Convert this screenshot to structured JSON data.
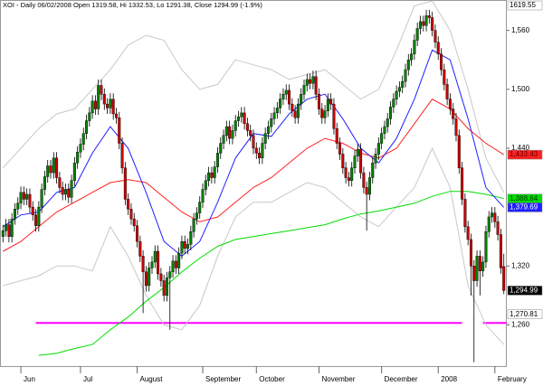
{
  "chart_data": {
    "type": "candlestick",
    "title": "XOI - Daily 06/02/2008 Open 1319.58, Hi 1332.53, Lo 1291.38, Close 1294.99 (-1.9%)",
    "up_color": "#008000",
    "down_color": "#cc0000",
    "xlim": [
      -1,
      169
    ],
    "ylim": [
      1218,
      1591
    ],
    "yticks": [
      {
        "value": 1260,
        "label": "1,260"
      },
      {
        "value": 1320,
        "label": "1,320"
      },
      {
        "value": 1440,
        "label": "1,440"
      },
      {
        "value": 1500,
        "label": "1,500"
      },
      {
        "value": 1560,
        "label": "1,560"
      }
    ],
    "xticks": [
      {
        "value": 6,
        "label": "Jun"
      },
      {
        "value": 26,
        "label": "Jul"
      },
      {
        "value": 45,
        "label": "August"
      },
      {
        "value": 67,
        "label": "September"
      },
      {
        "value": 85,
        "label": "October"
      },
      {
        "value": 106,
        "label": "November"
      },
      {
        "value": 127,
        "label": "December"
      },
      {
        "value": 146,
        "label": "2008"
      },
      {
        "value": 165,
        "label": "February"
      }
    ],
    "open": [
      1350,
      1356,
      1362,
      1350,
      1368,
      1378,
      1384,
      1395,
      1388,
      1393,
      1380,
      1372,
      1361,
      1380,
      1398,
      1411,
      1422,
      1415,
      1430,
      1410,
      1400,
      1393,
      1398,
      1390,
      1407,
      1425,
      1436,
      1444,
      1455,
      1468,
      1476,
      1488,
      1480,
      1504,
      1495,
      1485,
      1481,
      1490,
      1475,
      1471,
      1445,
      1420,
      1388,
      1378,
      1368,
      1361,
      1345,
      1330,
      1314,
      1300,
      1318,
      1324,
      1335,
      1312,
      1305,
      1290,
      1308,
      1314,
      1325,
      1318,
      1333,
      1345,
      1338,
      1342,
      1355,
      1368,
      1374,
      1385,
      1398,
      1407,
      1415,
      1410,
      1421,
      1435,
      1445,
      1453,
      1462,
      1450,
      1458,
      1468,
      1472,
      1476,
      1465,
      1458,
      1453,
      1440,
      1435,
      1430,
      1445,
      1455,
      1462,
      1470,
      1476,
      1481,
      1490,
      1495,
      1499,
      1485,
      1478,
      1471,
      1485,
      1495,
      1504,
      1510,
      1506,
      1513,
      1495,
      1480,
      1471,
      1478,
      1490,
      1485,
      1460,
      1445,
      1434,
      1420,
      1410,
      1407,
      1420,
      1432,
      1439,
      1415,
      1400,
      1393,
      1410,
      1425,
      1434,
      1445,
      1455,
      1462,
      1470,
      1482,
      1490,
      1498,
      1502,
      1508,
      1520,
      1530,
      1536,
      1550,
      1562,
      1569,
      1565,
      1575,
      1573,
      1560,
      1548,
      1536,
      1520,
      1505,
      1490,
      1480,
      1470,
      1453,
      1420,
      1388,
      1360,
      1347,
      1320,
      1305,
      1330,
      1315,
      1324,
      1355,
      1370,
      1374,
      1365,
      1352,
      1319.58
    ],
    "high": [
      1362,
      1368,
      1368,
      1374,
      1384,
      1390,
      1401,
      1401,
      1399,
      1399,
      1386,
      1378,
      1386,
      1404,
      1417,
      1428,
      1428,
      1436,
      1436,
      1416,
      1406,
      1404,
      1404,
      1413,
      1431,
      1442,
      1450,
      1461,
      1474,
      1482,
      1494,
      1494,
      1510,
      1510,
      1501,
      1491,
      1496,
      1496,
      1481,
      1477,
      1451,
      1426,
      1394,
      1384,
      1374,
      1367,
      1351,
      1336,
      1320,
      1324,
      1330,
      1341,
      1341,
      1318,
      1311,
      1314,
      1320,
      1331,
      1331,
      1339,
      1351,
      1351,
      1348,
      1361,
      1374,
      1380,
      1391,
      1404,
      1413,
      1421,
      1421,
      1427,
      1441,
      1451,
      1459,
      1468,
      1468,
      1464,
      1474,
      1478,
      1482,
      1482,
      1471,
      1464,
      1459,
      1446,
      1441,
      1451,
      1461,
      1468,
      1476,
      1482,
      1487,
      1496,
      1501,
      1505,
      1505,
      1491,
      1484,
      1491,
      1501,
      1510,
      1516,
      1516,
      1519,
      1519,
      1501,
      1486,
      1484,
      1496,
      1496,
      1491,
      1466,
      1451,
      1440,
      1426,
      1416,
      1426,
      1438,
      1445,
      1445,
      1421,
      1406,
      1416,
      1431,
      1440,
      1451,
      1461,
      1468,
      1476,
      1488,
      1496,
      1504,
      1508,
      1514,
      1526,
      1536,
      1542,
      1556,
      1568,
      1575,
      1575,
      1581,
      1581,
      1579,
      1566,
      1554,
      1542,
      1526,
      1511,
      1496,
      1486,
      1476,
      1459,
      1426,
      1394,
      1366,
      1353,
      1326,
      1336,
      1336,
      1330,
      1361,
      1376,
      1380,
      1380,
      1371,
      1358,
      1332.53
    ],
    "low": [
      1344,
      1350,
      1344,
      1344,
      1362,
      1372,
      1378,
      1382,
      1382,
      1374,
      1366,
      1355,
      1355,
      1374,
      1392,
      1405,
      1409,
      1409,
      1404,
      1394,
      1387,
      1387,
      1384,
      1384,
      1401,
      1419,
      1430,
      1438,
      1449,
      1462,
      1470,
      1474,
      1474,
      1489,
      1479,
      1475,
      1475,
      1469,
      1465,
      1439,
      1414,
      1382,
      1372,
      1362,
      1355,
      1339,
      1324,
      1272,
      1294,
      1294,
      1312,
      1318,
      1306,
      1299,
      1284,
      1284,
      1255,
      1308,
      1312,
      1312,
      1327,
      1332,
      1332,
      1336,
      1349,
      1362,
      1368,
      1379,
      1392,
      1401,
      1404,
      1404,
      1415,
      1429,
      1439,
      1447,
      1444,
      1444,
      1452,
      1462,
      1466,
      1459,
      1452,
      1447,
      1434,
      1429,
      1424,
      1424,
      1439,
      1449,
      1456,
      1464,
      1470,
      1475,
      1484,
      1489,
      1479,
      1472,
      1465,
      1465,
      1479,
      1489,
      1498,
      1500,
      1500,
      1489,
      1474,
      1465,
      1465,
      1472,
      1479,
      1454,
      1439,
      1428,
      1414,
      1404,
      1401,
      1401,
      1414,
      1426,
      1409,
      1394,
      1356,
      1387,
      1404,
      1419,
      1428,
      1439,
      1449,
      1456,
      1464,
      1476,
      1484,
      1492,
      1496,
      1502,
      1514,
      1524,
      1530,
      1544,
      1556,
      1559,
      1559,
      1567,
      1554,
      1542,
      1530,
      1514,
      1499,
      1484,
      1474,
      1464,
      1447,
      1414,
      1382,
      1354,
      1341,
      1290,
      1222,
      1299,
      1290,
      1309,
      1318,
      1349,
      1364,
      1359,
      1346,
      1312,
      1291.38
    ],
    "close": [
      1356,
      1362,
      1350,
      1368,
      1378,
      1384,
      1395,
      1388,
      1393,
      1380,
      1372,
      1361,
      1380,
      1398,
      1411,
      1422,
      1415,
      1430,
      1410,
      1400,
      1393,
      1398,
      1390,
      1407,
      1425,
      1436,
      1444,
      1455,
      1468,
      1476,
      1488,
      1480,
      1504,
      1495,
      1485,
      1481,
      1490,
      1475,
      1471,
      1445,
      1420,
      1388,
      1378,
      1368,
      1361,
      1345,
      1330,
      1314,
      1300,
      1318,
      1324,
      1335,
      1312,
      1305,
      1290,
      1308,
      1314,
      1325,
      1318,
      1333,
      1345,
      1338,
      1342,
      1355,
      1368,
      1374,
      1385,
      1398,
      1407,
      1415,
      1410,
      1421,
      1435,
      1445,
      1453,
      1462,
      1450,
      1458,
      1468,
      1472,
      1476,
      1465,
      1458,
      1453,
      1440,
      1435,
      1430,
      1445,
      1455,
      1462,
      1470,
      1476,
      1481,
      1490,
      1495,
      1499,
      1485,
      1478,
      1471,
      1485,
      1495,
      1504,
      1510,
      1506,
      1513,
      1495,
      1480,
      1471,
      1478,
      1490,
      1485,
      1460,
      1445,
      1434,
      1420,
      1410,
      1407,
      1420,
      1432,
      1439,
      1415,
      1400,
      1393,
      1410,
      1425,
      1434,
      1445,
      1455,
      1462,
      1470,
      1482,
      1490,
      1498,
      1502,
      1508,
      1520,
      1530,
      1536,
      1550,
      1562,
      1569,
      1565,
      1575,
      1573,
      1560,
      1548,
      1536,
      1520,
      1505,
      1490,
      1480,
      1470,
      1453,
      1420,
      1388,
      1360,
      1347,
      1320,
      1305,
      1330,
      1315,
      1324,
      1355,
      1370,
      1374,
      1365,
      1352,
      1318,
      1294.99
    ],
    "overlay_x": [
      0,
      6,
      12,
      18,
      24,
      30,
      36,
      42,
      48,
      54,
      60,
      66,
      72,
      78,
      84,
      90,
      96,
      102,
      108,
      114,
      120,
      126,
      132,
      138,
      144,
      150,
      156,
      162,
      168
    ],
    "overlays": [
      {
        "color": "#c8c8c8",
        "values": [
          1420,
          1440,
          1460,
          1475,
          1480,
          1500,
          1520,
          1545,
          1555,
          1550,
          1520,
          1500,
          1505,
          1530,
          1525,
          1520,
          1510,
          1515,
          1520,
          1505,
          1490,
          1500,
          1540,
          1585,
          1590,
          1560,
          1500,
          1430,
          1395
        ]
      },
      {
        "color": "#c8c8c8",
        "values": [
          1300,
          1305,
          1310,
          1320,
          1320,
          1315,
          1360,
          1330,
          1290,
          1260,
          1255,
          1280,
          1330,
          1370,
          1385,
          1385,
          1395,
          1405,
          1400,
          1385,
          1370,
          1360,
          1380,
          1400,
          1440,
          1400,
          1300,
          1260,
          1240
        ]
      },
      {
        "color": "#00dd00",
        "values": [
          null,
          null,
          1229,
          1231,
          1236,
          1240,
          1255,
          1268,
          1284,
          1298,
          1314,
          1328,
          1340,
          1347,
          1350,
          1353,
          1356,
          1359,
          1362,
          1368,
          1373,
          1376,
          1380,
          1384,
          1391,
          1396,
          1396,
          1393,
          1388.64
        ]
      },
      {
        "color": "#ff2020",
        "values": [
          1335,
          1345,
          1360,
          1375,
          1385,
          1395,
          1405,
          1408,
          1405,
          1390,
          1375,
          1365,
          1370,
          1385,
          1400,
          1410,
          1425,
          1440,
          1450,
          1445,
          1435,
          1430,
          1440,
          1465,
          1490,
          1480,
          1460,
          1445,
          1433.43
        ]
      },
      {
        "color": "#2020ff",
        "values": [
          1360,
          1372,
          1375,
          1395,
          1400,
          1435,
          1462,
          1440,
          1395,
          1345,
          1330,
          1345,
          1385,
          1430,
          1455,
          1452,
          1475,
          1490,
          1495,
          1470,
          1440,
          1425,
          1450,
          1490,
          1540,
          1530,
          1470,
          1400,
          1379.69
        ]
      }
    ],
    "hlines": [
      {
        "value": 1262,
        "from": 11,
        "to": 154,
        "color": "#ff00ff"
      },
      {
        "value": 1262,
        "from": 161,
        "to": 169,
        "color": "#ff00ff"
      }
    ],
    "price_labels": [
      {
        "value": 1619.55,
        "color": "#ffffff",
        "text_color": "#000000"
      },
      {
        "value": 1433.43,
        "label": "1,433.43",
        "color": "#ff2020",
        "text_color": "#600000"
      },
      {
        "value": 1388.64,
        "label": "1,388.64",
        "color": "#00dd00",
        "text_color": "#003000"
      },
      {
        "value": 1379.69,
        "label": "1,379.69",
        "color": "#2020ff",
        "text_color": "#ffffff"
      },
      {
        "value": 1294.99,
        "label": "1,294.99",
        "color": "#000000",
        "text_color": "#ffffff"
      },
      {
        "value": 1270.81,
        "label": "1,270.81",
        "color": "#ffffff",
        "text_color": "#000000"
      }
    ]
  }
}
